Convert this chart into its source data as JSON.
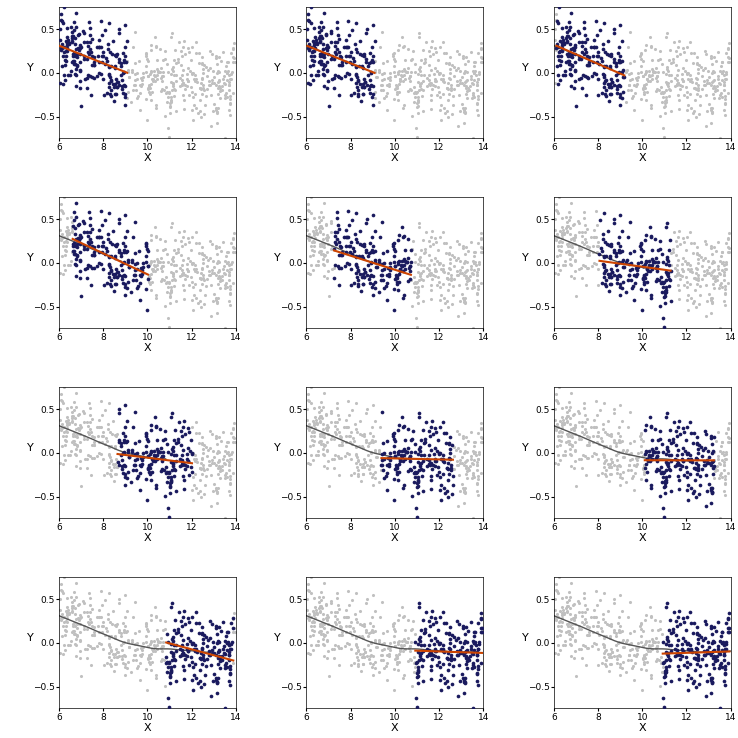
{
  "n_points": 500,
  "x_range": [
    6,
    14
  ],
  "n_rows": 4,
  "n_cols": 3,
  "n_panels": 12,
  "seed": 42,
  "span": 0.4,
  "xlabel": "X",
  "ylabel": "Y",
  "gray_color": "#c0c0c0",
  "blue_color": "#1a1a5e",
  "orange_color": "#cc4400",
  "loess_color": "#555555",
  "background_color": "#ffffff",
  "tick_label_size": 6.5,
  "axis_label_size": 8,
  "point_size_gray": 5,
  "point_size_blue": 7,
  "figsize": [
    7.38,
    7.38
  ],
  "dpi": 100,
  "yticks": [
    -0.5,
    0.0,
    0.5
  ],
  "xticks": [
    6,
    8,
    10,
    12,
    14
  ],
  "ylim": [
    -0.75,
    0.75
  ]
}
